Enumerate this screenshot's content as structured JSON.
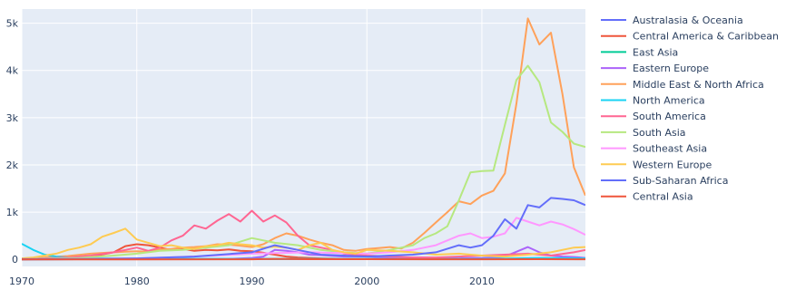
{
  "chart_data": {
    "type": "line",
    "title": "",
    "xlabel": "",
    "ylabel": "",
    "xlim": [
      1970,
      2019
    ],
    "ylim": [
      -150,
      5300
    ],
    "x_ticks": [
      1970,
      1980,
      1990,
      2000,
      2010
    ],
    "x_tick_labels": [
      "1970",
      "1980",
      "1990",
      "2000",
      "2010"
    ],
    "y_ticks": [
      0,
      1000,
      2000,
      3000,
      4000,
      5000
    ],
    "y_tick_labels": [
      "0",
      "1k",
      "2k",
      "3k",
      "4k",
      "5k"
    ],
    "grid": true,
    "legend_position": "right",
    "plot_background": "#e5ecf6",
    "grid_color": "#ffffff",
    "series": [
      {
        "name": "Australasia & Oceania",
        "color": "#636efa",
        "x": [
          1970,
          1975,
          1980,
          1985,
          1990,
          1995,
          2000,
          2005,
          2010,
          2015,
          2019
        ],
        "y": [
          0,
          3,
          5,
          3,
          8,
          5,
          3,
          4,
          5,
          6,
          8
        ]
      },
      {
        "name": "Central America & Caribbean",
        "color": "#ef553b",
        "x": [
          1970,
          1972,
          1974,
          1976,
          1978,
          1979,
          1980,
          1981,
          1982,
          1983,
          1984,
          1985,
          1986,
          1987,
          1988,
          1989,
          1990,
          1991,
          1992,
          1993,
          1994,
          1995,
          1996,
          1997,
          1998,
          2000,
          2002,
          2004,
          2006,
          2008,
          2010,
          2012,
          2014,
          2016,
          2019
        ],
        "y": [
          0,
          10,
          30,
          60,
          150,
          280,
          320,
          300,
          250,
          200,
          220,
          180,
          200,
          190,
          210,
          180,
          170,
          140,
          100,
          60,
          40,
          30,
          20,
          15,
          10,
          8,
          6,
          5,
          5,
          6,
          5,
          6,
          5,
          6,
          6
        ]
      },
      {
        "name": "East Asia",
        "color": "#00cc96",
        "x": [
          1970,
          1975,
          1980,
          1985,
          1990,
          1995,
          2000,
          2005,
          2010,
          2015,
          2019
        ],
        "y": [
          2,
          3,
          5,
          8,
          10,
          8,
          6,
          5,
          5,
          8,
          6
        ]
      },
      {
        "name": "Eastern Europe",
        "color": "#ab63fa",
        "x": [
          1970,
          1980,
          1988,
          1990,
          1991,
          1992,
          1993,
          1994,
          1995,
          1996,
          1998,
          2000,
          2002,
          2004,
          2006,
          2008,
          2010,
          2012,
          2014,
          2015,
          2016,
          2017,
          2018,
          2019
        ],
        "y": [
          2,
          5,
          10,
          30,
          60,
          200,
          180,
          150,
          100,
          90,
          60,
          60,
          40,
          40,
          30,
          20,
          30,
          60,
          260,
          150,
          80,
          60,
          50,
          30
        ]
      },
      {
        "name": "Middle East & North Africa",
        "color": "#ffa15a",
        "x": [
          1970,
          1972,
          1974,
          1976,
          1978,
          1979,
          1980,
          1981,
          1982,
          1983,
          1984,
          1985,
          1986,
          1987,
          1988,
          1989,
          1990,
          1991,
          1992,
          1993,
          1994,
          1995,
          1996,
          1997,
          1998,
          1999,
          2000,
          2001,
          2002,
          2003,
          2004,
          2005,
          2006,
          2007,
          2008,
          2009,
          2010,
          2011,
          2012,
          2013,
          2014,
          2015,
          2016,
          2017,
          2018,
          2019
        ],
        "y": [
          20,
          40,
          70,
          120,
          150,
          160,
          170,
          160,
          210,
          220,
          250,
          260,
          280,
          320,
          310,
          290,
          260,
          320,
          450,
          550,
          500,
          420,
          350,
          300,
          200,
          180,
          220,
          240,
          260,
          230,
          350,
          560,
          780,
          1000,
          1230,
          1170,
          1350,
          1450,
          1820,
          3300,
          5100,
          4550,
          4800,
          3500,
          1950,
          1350
        ]
      },
      {
        "name": "North America",
        "color": "#19d3f3",
        "x": [
          1970,
          1971,
          1972,
          1973,
          1974,
          1975,
          1976,
          1978,
          1980,
          1985,
          1990,
          1995,
          2000,
          2005,
          2010,
          2015,
          2019
        ],
        "y": [
          330,
          200,
          100,
          60,
          40,
          30,
          20,
          15,
          10,
          10,
          8,
          10,
          8,
          5,
          10,
          30,
          20
        ]
      },
      {
        "name": "South America",
        "color": "#ff6692",
        "x": [
          1970,
          1972,
          1974,
          1976,
          1978,
          1979,
          1980,
          1981,
          1982,
          1983,
          1984,
          1985,
          1986,
          1987,
          1988,
          1989,
          1990,
          1991,
          1992,
          1993,
          1994,
          1995,
          1996,
          1997,
          1998,
          1999,
          2000,
          2002,
          2004,
          2006,
          2008,
          2010,
          2012,
          2014,
          2016,
          2018,
          2019
        ],
        "y": [
          10,
          20,
          40,
          80,
          150,
          200,
          250,
          180,
          250,
          400,
          500,
          720,
          650,
          820,
          960,
          800,
          1030,
          800,
          930,
          780,
          500,
          300,
          250,
          200,
          120,
          100,
          80,
          60,
          40,
          40,
          60,
          80,
          100,
          120,
          80,
          150,
          200
        ]
      },
      {
        "name": "South Asia",
        "color": "#b6e880",
        "x": [
          1970,
          1975,
          1978,
          1980,
          1982,
          1984,
          1986,
          1988,
          1990,
          1992,
          1994,
          1996,
          1998,
          2000,
          2002,
          2004,
          2005,
          2006,
          2007,
          2008,
          2009,
          2010,
          2011,
          2012,
          2013,
          2014,
          2015,
          2016,
          2017,
          2018,
          2019
        ],
        "y": [
          10,
          30,
          80,
          120,
          180,
          200,
          250,
          300,
          450,
          350,
          300,
          200,
          150,
          120,
          200,
          300,
          450,
          550,
          700,
          1250,
          1840,
          1870,
          1880,
          2850,
          3800,
          4100,
          3750,
          2900,
          2700,
          2450,
          2380
        ]
      },
      {
        "name": "Southeast Asia",
        "color": "#ff97ff",
        "x": [
          1970,
          1975,
          1980,
          1985,
          1990,
          1995,
          2000,
          2002,
          2004,
          2006,
          2007,
          2008,
          2009,
          2010,
          2011,
          2012,
          2013,
          2014,
          2015,
          2016,
          2017,
          2018,
          2019
        ],
        "y": [
          5,
          10,
          20,
          60,
          120,
          150,
          120,
          150,
          200,
          300,
          400,
          500,
          550,
          450,
          480,
          550,
          880,
          800,
          720,
          800,
          740,
          640,
          520
        ]
      },
      {
        "name": "Western Europe",
        "color": "#fecb52",
        "x": [
          1970,
          1971,
          1972,
          1973,
          1974,
          1975,
          1976,
          1977,
          1978,
          1979,
          1980,
          1981,
          1982,
          1983,
          1984,
          1985,
          1986,
          1987,
          1988,
          1989,
          1990,
          1991,
          1992,
          1993,
          1994,
          1995,
          1996,
          1997,
          1998,
          1999,
          2000,
          2002,
          2004,
          2006,
          2008,
          2010,
          2012,
          2014,
          2016,
          2018,
          2019
        ],
        "y": [
          20,
          40,
          80,
          120,
          200,
          250,
          320,
          480,
          560,
          650,
          420,
          350,
          280,
          300,
          250,
          220,
          280,
          300,
          350,
          320,
          300,
          250,
          270,
          250,
          200,
          300,
          350,
          200,
          150,
          120,
          200,
          180,
          150,
          100,
          120,
          80,
          60,
          100,
          150,
          250,
          260
        ]
      },
      {
        "name": "Sub-Saharan Africa",
        "color": "#636efa",
        "x": [
          1970,
          1975,
          1980,
          1985,
          1990,
          1992,
          1994,
          1996,
          1998,
          2000,
          2002,
          2004,
          2006,
          2008,
          2009,
          2010,
          2011,
          2012,
          2013,
          2014,
          2015,
          2016,
          2017,
          2018,
          2019
        ],
        "y": [
          5,
          10,
          20,
          60,
          150,
          300,
          200,
          100,
          80,
          60,
          80,
          100,
          150,
          300,
          250,
          300,
          500,
          850,
          650,
          1150,
          1100,
          1300,
          1280,
          1250,
          1150
        ]
      },
      {
        "name": "Central Asia",
        "color": "#ef553b",
        "x": [
          1970,
          1980,
          1990,
          1991,
          1992,
          1993,
          1995,
          2000,
          2005,
          2010,
          2015,
          2019
        ],
        "y": [
          0,
          0,
          2,
          5,
          10,
          8,
          4,
          3,
          2,
          2,
          3,
          2
        ]
      }
    ]
  }
}
